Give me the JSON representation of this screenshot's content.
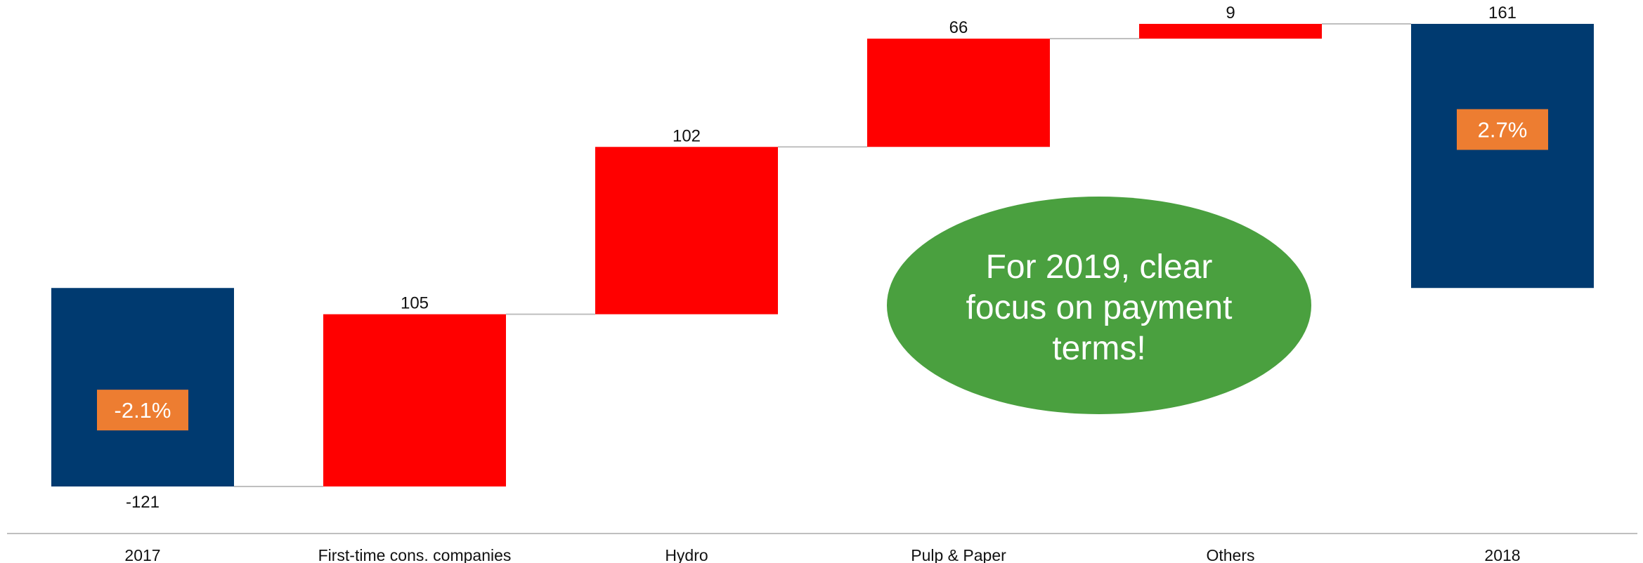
{
  "chart_data": {
    "type": "waterfall",
    "categories": [
      "2017",
      "First-time cons. companies",
      "Hydro",
      "Pulp & Paper",
      "Others",
      "2018"
    ],
    "values": [
      -121,
      105,
      102,
      66,
      9,
      161
    ],
    "value_labels": [
      "-121",
      "105",
      "102",
      "66",
      "9",
      "161"
    ],
    "kinds": [
      "total",
      "delta",
      "delta",
      "delta",
      "delta",
      "total"
    ],
    "total_badges": [
      {
        "category": "2017",
        "label": "-2.1%"
      },
      {
        "category": "2018",
        "label": "2.7%"
      }
    ],
    "callout_lines": [
      "For 2019, clear",
      "focus on payment",
      "terms!"
    ],
    "ylim": [
      -121,
      161
    ],
    "colors": {
      "total": "#003A70",
      "delta": "#FF0000",
      "badge": "#ED7D31",
      "callout": "#4AA03F",
      "connector": "#BFBFBF",
      "axis": "#BFBFBF"
    }
  }
}
